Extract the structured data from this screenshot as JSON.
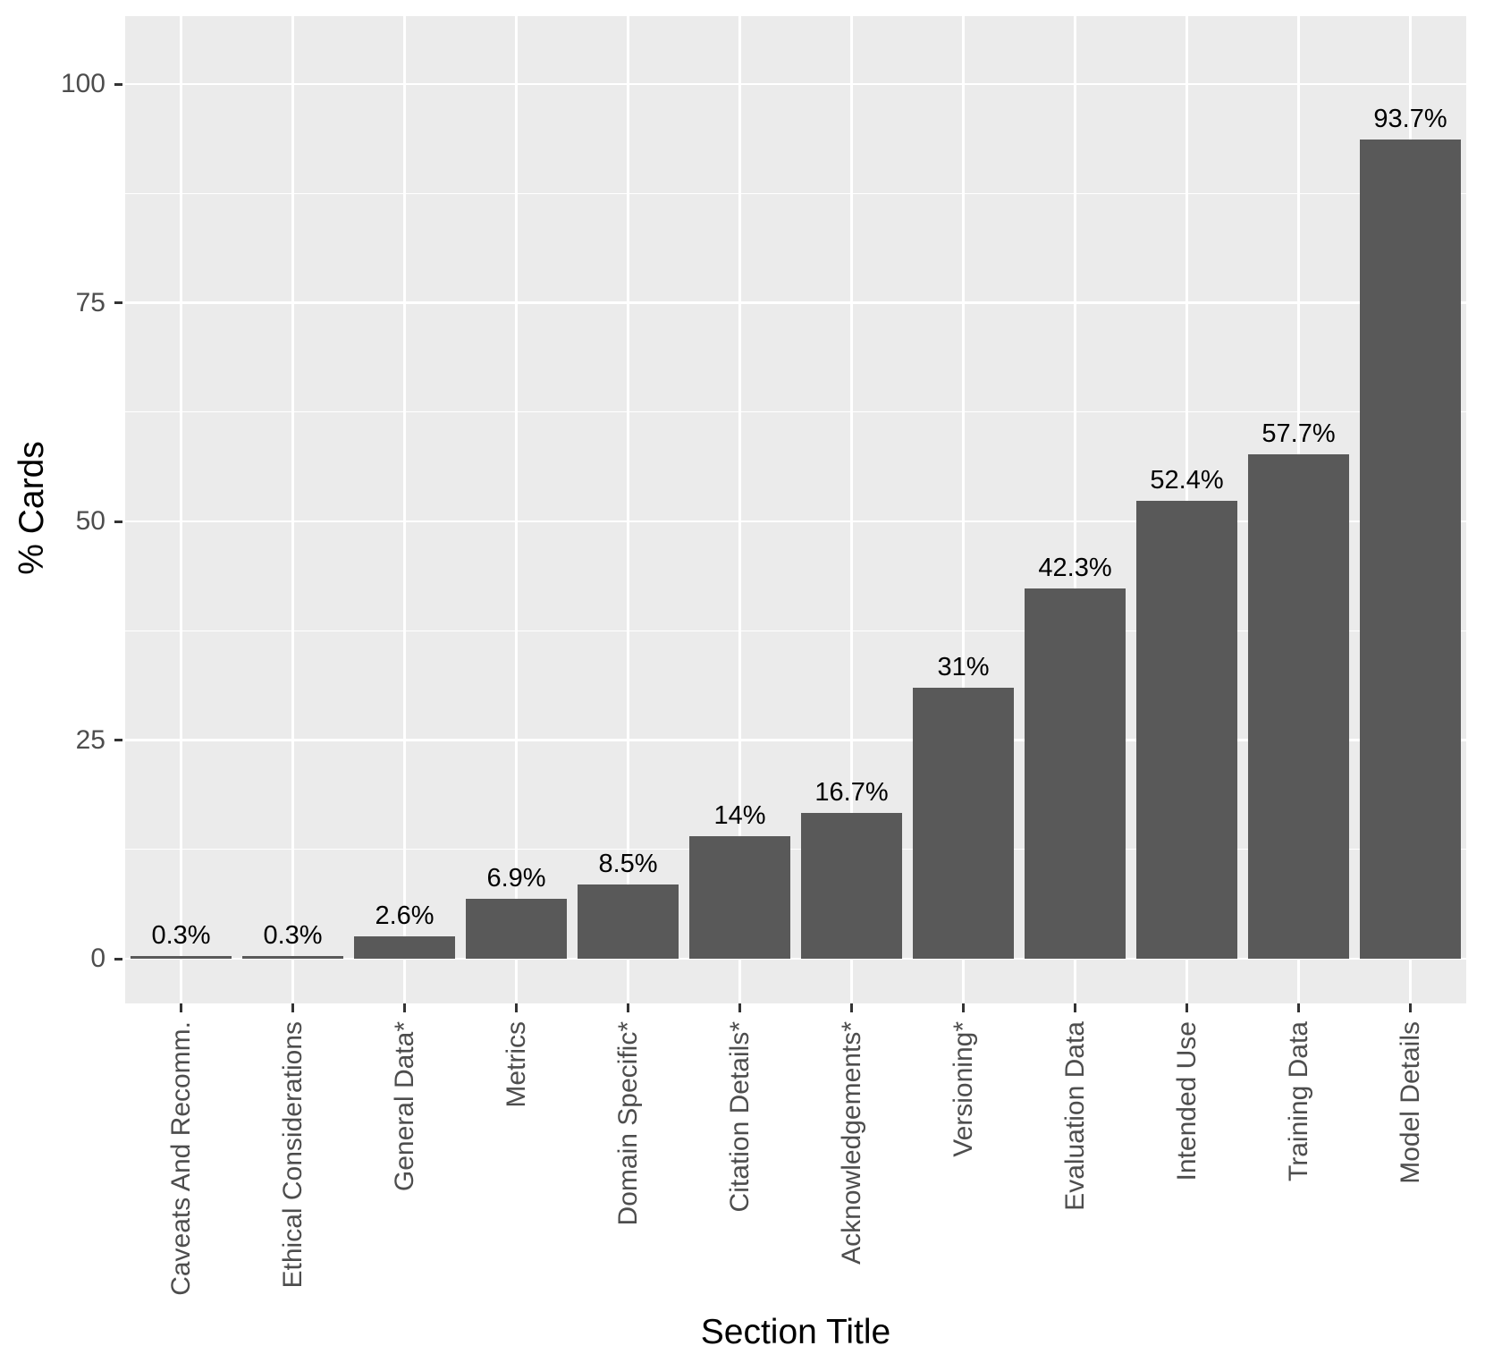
{
  "chart_data": {
    "type": "bar",
    "title": "",
    "xlabel": "Section Title",
    "ylabel": "% Cards",
    "categories": [
      "Caveats And Recomm.",
      "Ethical Considerations",
      "General Data*",
      "Metrics",
      "Domain Specific*",
      "Citation Details*",
      "Acknowledgements*",
      "Versioning*",
      "Evaluation Data",
      "Intended Use",
      "Training Data",
      "Model Details"
    ],
    "values": [
      0.3,
      0.3,
      2.6,
      6.9,
      8.5,
      14,
      16.7,
      31,
      42.3,
      52.4,
      57.7,
      93.7
    ],
    "value_labels": [
      "0.3%",
      "0.3%",
      "2.6%",
      "6.9%",
      "8.5%",
      "14%",
      "16.7%",
      "31%",
      "42.3%",
      "52.4%",
      "57.7%",
      "93.7%"
    ],
    "y_tick_labels": [
      "0",
      "25",
      "50",
      "75",
      "100"
    ],
    "y_major_breaks": [
      0,
      25,
      50,
      75,
      100
    ],
    "y_minor_breaks": [
      12.5,
      37.5,
      62.5,
      87.5
    ],
    "ylim": [
      0,
      100
    ],
    "legend": "none",
    "grid": "on",
    "colors": {
      "bar_fill": "#595959",
      "panel_background": "#EBEBEB",
      "gridline": "#FFFFFF",
      "axis_text": "#4D4D4D",
      "axis_title": "#000000",
      "tick_mark": "#333333"
    }
  }
}
